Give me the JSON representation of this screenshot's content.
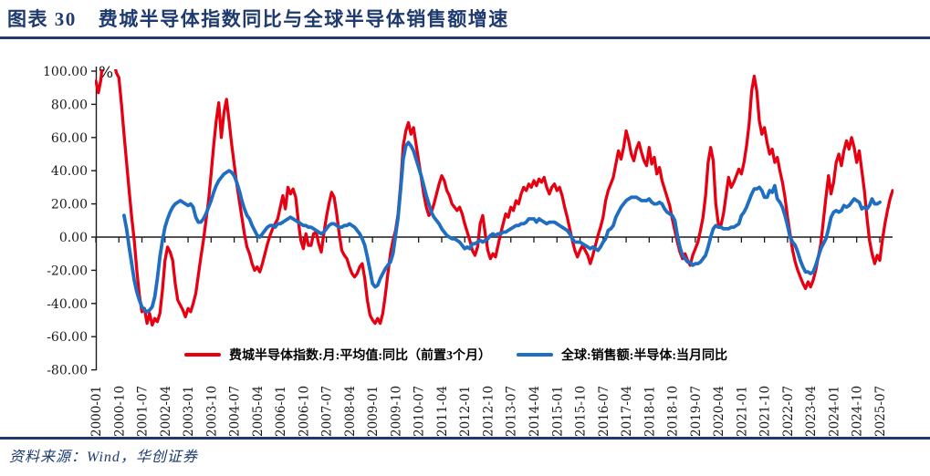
{
  "header": {
    "label": "图表 30",
    "title": "费城半导体指数同比与全球半导体销售额增速"
  },
  "footer": {
    "source": "资料来源：Wind，华创证券"
  },
  "colors": {
    "navy": "#1e3a6e",
    "red": "#e60012",
    "blue": "#1f6ec2",
    "axis": "#1a1a1a",
    "legend_text": "#000000"
  },
  "chart_data": {
    "type": "line",
    "title": "费城半导体指数同比与全球半导体销售额增速",
    "unit_label": "%",
    "x_start": "2000-01",
    "x_end": "2025-12",
    "x_frequency": "monthly",
    "months_per_tick": 9,
    "x_tick_labels": [
      "2000-01",
      "2000-10",
      "2001-07",
      "2002-04",
      "2003-01",
      "2003-10",
      "2004-07",
      "2005-04",
      "2006-01",
      "2006-10",
      "2007-07",
      "2008-04",
      "2009-01",
      "2009-10",
      "2010-07",
      "2011-04",
      "2012-01",
      "2012-10",
      "2013-07",
      "2014-04",
      "2015-01",
      "2015-10",
      "2016-07",
      "2017-04",
      "2018-01",
      "2018-10",
      "2019-07",
      "2020-04",
      "2021-01",
      "2021-10",
      "2022-07",
      "2023-04",
      "2024-01",
      "2024-10",
      "2025-07"
    ],
    "ylim": [
      -80,
      100
    ],
    "y_ticks": [
      100,
      80,
      60,
      40,
      20,
      0,
      -20,
      -40,
      -60,
      -80
    ],
    "y_tick_labels": [
      "100.00",
      "80.00",
      "60.00",
      "40.00",
      "20.00",
      "0.00",
      "-20.00",
      "-40.00",
      "-60.00",
      "-80.00"
    ],
    "grid": false,
    "legend_position": "bottom-inside",
    "series": [
      {
        "name": "费城半导体指数:月:平均值:同比（前置3个月）",
        "color": "#e60012",
        "monthly_values": [
          94,
          87,
          95,
          112,
          120,
          124,
          117,
          106,
          99,
          96,
          80,
          62,
          45,
          28,
          12,
          -2,
          -20,
          -35,
          -45,
          -43,
          -52,
          -46,
          -53,
          -49,
          -51,
          -46,
          -32,
          -14,
          -6,
          -9,
          -14,
          -28,
          -38,
          -41,
          -44,
          -48,
          -43,
          -45,
          -40,
          -34,
          -23,
          -12,
          -2,
          10,
          22,
          38,
          55,
          70,
          81,
          60,
          75,
          83,
          70,
          56,
          44,
          32,
          22,
          12,
          2,
          -6,
          -10,
          -16,
          -20,
          -18,
          -21,
          -16,
          -10,
          -4,
          1,
          5,
          8,
          11,
          18,
          25,
          17,
          30,
          26,
          29,
          24,
          10,
          -2,
          -7,
          2,
          -5,
          -5,
          2,
          3,
          -4,
          -9,
          2,
          12,
          20,
          27,
          24,
          14,
          2,
          -8,
          -11,
          -13,
          -18,
          -22,
          -24,
          -22,
          -18,
          -16,
          -25,
          -38,
          -47,
          -50,
          -52,
          -49,
          -52,
          -46,
          -35,
          -22,
          -10,
          -2,
          4,
          14,
          32,
          55,
          64,
          69,
          62,
          66,
          56,
          46,
          36,
          26,
          18,
          13,
          15,
          20,
          26,
          32,
          37,
          34,
          28,
          25,
          20,
          18,
          16,
          18,
          14,
          8,
          3,
          -2,
          -8,
          -11,
          -6,
          8,
          13,
          2,
          -8,
          -13,
          -10,
          -12,
          -5,
          2,
          8,
          14,
          12,
          18,
          16,
          22,
          20,
          26,
          30,
          28,
          32,
          30,
          34,
          31,
          35,
          33,
          36,
          30,
          26,
          30,
          32,
          28,
          30,
          25,
          18,
          12,
          5,
          -2,
          -8,
          -12,
          -8,
          -5,
          -8,
          -11,
          -16,
          -11,
          -5,
          1,
          6,
          12,
          22,
          28,
          32,
          36,
          44,
          52,
          47,
          54,
          64,
          58,
          50,
          46,
          53,
          57,
          51,
          46,
          43,
          54,
          44,
          48,
          38,
          42,
          34,
          29,
          24,
          19,
          11,
          4,
          -3,
          -9,
          -13,
          -10,
          -14,
          -17,
          -11,
          -7,
          -3,
          4,
          12,
          25,
          45,
          54,
          46,
          20,
          8,
          7,
          14,
          25,
          36,
          30,
          33,
          37,
          41,
          38,
          45,
          55,
          68,
          88,
          97,
          88,
          70,
          62,
          66,
          57,
          50,
          53,
          45,
          48,
          40,
          33,
          24,
          12,
          2,
          -8,
          -15,
          -20,
          -24,
          -28,
          -31,
          -27,
          -30,
          -26,
          -20,
          -12,
          -4,
          10,
          24,
          37,
          26,
          33,
          45,
          50,
          43,
          52,
          58,
          53,
          60,
          54,
          45,
          52,
          40,
          28,
          12,
          -2,
          -10,
          -16,
          -11,
          -14,
          -2,
          8,
          16,
          23,
          28
        ]
      },
      {
        "name": "全球:销售额:半导体:当月同比",
        "color": "#1f6ec2",
        "monthly_values": [
          null,
          null,
          null,
          null,
          null,
          null,
          null,
          null,
          null,
          null,
          null,
          13,
          5,
          -6,
          -16,
          -26,
          -33,
          -38,
          -42,
          -44,
          -45,
          -44,
          -42,
          -36,
          -25,
          -12,
          -2,
          6,
          11,
          15,
          18,
          20,
          21,
          22,
          21,
          20,
          19,
          20,
          18,
          12,
          9,
          9,
          11,
          14,
          18,
          22,
          27,
          31,
          34,
          36,
          38,
          39,
          40,
          39,
          37,
          33,
          28,
          22,
          17,
          13,
          11,
          7,
          4,
          1,
          0,
          2,
          4,
          6,
          7,
          7,
          6,
          8,
          8,
          9,
          10,
          11,
          12,
          11,
          10,
          9,
          8,
          7,
          7,
          6,
          6,
          5,
          4,
          3,
          2,
          3,
          5,
          7,
          8,
          8,
          7,
          6,
          6,
          7,
          7,
          8,
          7,
          6,
          4,
          2,
          -1,
          -5,
          -12,
          -20,
          -28,
          -30,
          -29,
          -25,
          -22,
          -19,
          -17,
          -15,
          -10,
          1,
          12,
          29,
          47,
          55,
          57,
          55,
          52,
          47,
          42,
          37,
          31,
          25,
          20,
          15,
          12,
          10,
          8,
          5,
          3,
          1,
          0,
          -1,
          -1,
          -2,
          -3,
          -5,
          -7,
          -6,
          -7,
          -4,
          -4,
          -3,
          -2,
          -3,
          -2,
          -1,
          1,
          2,
          1,
          2,
          2,
          3,
          3,
          4,
          5,
          6,
          7,
          7,
          8,
          8,
          9,
          11,
          11,
          11,
          9,
          11,
          10,
          9,
          8,
          9,
          9,
          9,
          8,
          7,
          6,
          5,
          4,
          2,
          -1,
          -3,
          -3,
          -3,
          -4,
          -5,
          -6,
          -7,
          -6,
          -7,
          -8,
          -6,
          -3,
          -1,
          4,
          5,
          7,
          12,
          15,
          18,
          20,
          22,
          23,
          24,
          24,
          24,
          23,
          22,
          22,
          22,
          23,
          21,
          20,
          20,
          21,
          20,
          17,
          15,
          14,
          13,
          10,
          1,
          -6,
          -11,
          -13,
          -15,
          -15,
          -17,
          -16,
          -16,
          -15,
          -13,
          -11,
          -6,
          0,
          5,
          7,
          6,
          6,
          5,
          5,
          5,
          6,
          6,
          7,
          8,
          13,
          15,
          18,
          22,
          26,
          29,
          29,
          30,
          28,
          24,
          24,
          28,
          27,
          31,
          23,
          21,
          18,
          13,
          7,
          0,
          -3,
          -5,
          -9,
          -14,
          -18,
          -21,
          -21,
          -22,
          -21,
          -17,
          -12,
          -7,
          -4,
          -1,
          5,
          12,
          15,
          16,
          15,
          16,
          19,
          18,
          19,
          21,
          23,
          22,
          21,
          17,
          18,
          17,
          19,
          23,
          20,
          20,
          21,
          null,
          null,
          null,
          null,
          null
        ]
      }
    ]
  }
}
